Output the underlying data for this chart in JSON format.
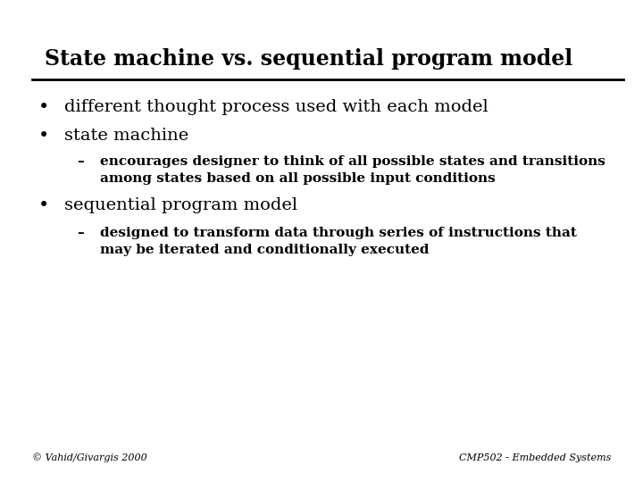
{
  "title": "State machine vs. sequential program model",
  "title_fontsize": 17,
  "title_fontweight": "bold",
  "title_fontfamily": "serif",
  "bg_color": "#ffffff",
  "text_color": "#000000",
  "line_color": "#000000",
  "footer_left": "© Vahid/Givargis 2000",
  "footer_right": "CMP502 - Embedded Systems",
  "footer_fontsize": 8,
  "bullet1": "different thought process used with each model",
  "bullet2": "state machine",
  "sub_bullet2_line1": "encourages designer to think of all possible states and transitions",
  "sub_bullet2_line2": "among states based on all possible input conditions",
  "bullet3": "sequential program model",
  "sub_bullet3_line1": "designed to transform data through series of instructions that",
  "sub_bullet3_line2": "may be iterated and conditionally executed",
  "bullet_fontsize": 14,
  "sub_bullet_fontsize": 11,
  "bullet_symbol": "•",
  "dash_symbol": "–"
}
